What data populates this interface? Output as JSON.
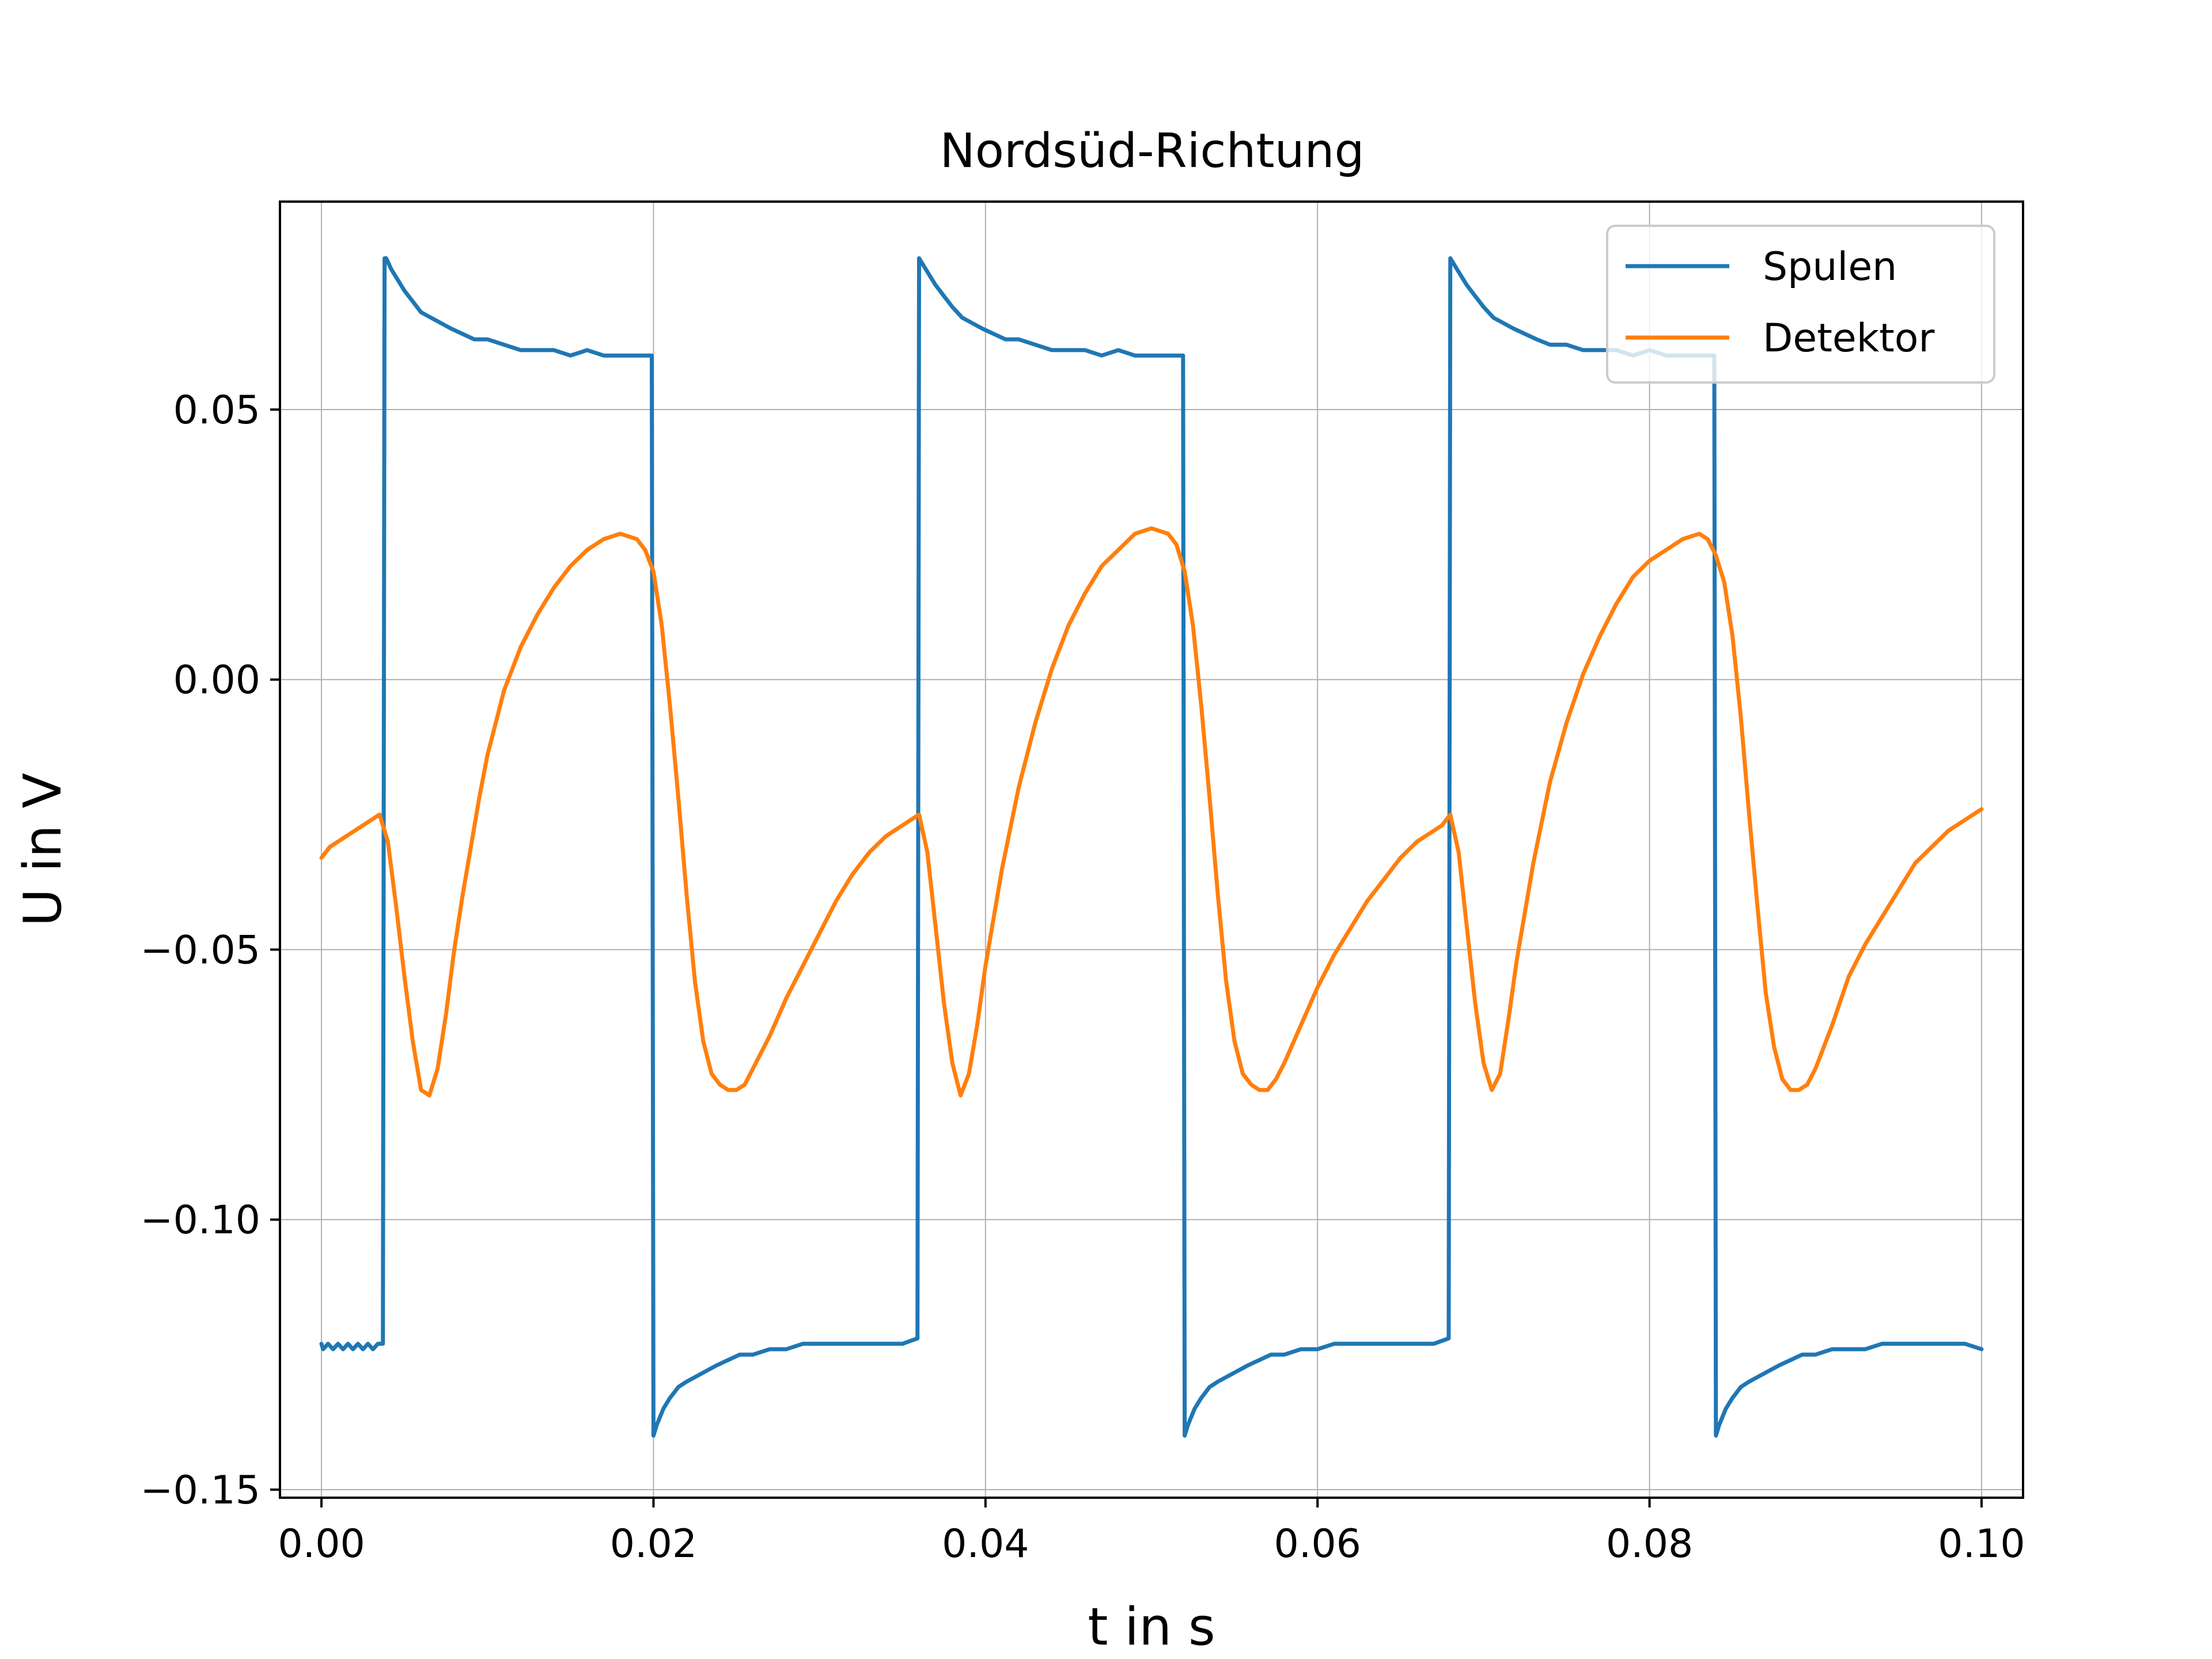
{
  "chart_data": {
    "type": "line",
    "title": "Nordsüd-Richtung",
    "xlabel": "t in s",
    "ylabel": "U in V",
    "xlim": [
      -0.0025,
      0.1025
    ],
    "ylim": [
      -0.1515,
      0.0885
    ],
    "xticks": [
      0.0,
      0.02,
      0.04,
      0.06,
      0.08,
      0.1
    ],
    "xtick_labels": [
      "0.00",
      "0.02",
      "0.04",
      "0.06",
      "0.08",
      "0.10"
    ],
    "yticks": [
      -0.15,
      -0.1,
      -0.05,
      0.0,
      0.05
    ],
    "ytick_labels": [
      "−0.15",
      "−0.10",
      "−0.05",
      "0.00",
      "0.05"
    ],
    "grid": true,
    "legend_position": "upper right",
    "series": [
      {
        "name": "Spulen",
        "color": "#1f77b4",
        "x": [
          0,
          0.0001,
          0.0004,
          0.0007,
          0.001,
          0.0013,
          0.0016,
          0.0019,
          0.0022,
          0.0025,
          0.0028,
          0.0031,
          0.0034,
          0.0037,
          0.0038,
          0.0039,
          0.0042,
          0.0046,
          0.005,
          0.0055,
          0.006,
          0.0066,
          0.0072,
          0.0078,
          0.0085,
          0.0092,
          0.01,
          0.011,
          0.012,
          0.013,
          0.014,
          0.015,
          0.016,
          0.017,
          0.018,
          0.019,
          0.0199,
          0.02,
          0.0202,
          0.0206,
          0.021,
          0.0215,
          0.022,
          0.0226,
          0.0232,
          0.0238,
          0.0245,
          0.0252,
          0.026,
          0.027,
          0.028,
          0.029,
          0.03,
          0.031,
          0.032,
          0.033,
          0.034,
          0.035,
          0.0359,
          0.036,
          0.0362,
          0.0366,
          0.037,
          0.0375,
          0.038,
          0.0386,
          0.0392,
          0.0398,
          0.0405,
          0.0412,
          0.042,
          0.043,
          0.044,
          0.045,
          0.046,
          0.047,
          0.048,
          0.049,
          0.05,
          0.051,
          0.0519,
          0.052,
          0.0522,
          0.0526,
          0.053,
          0.0535,
          0.054,
          0.0546,
          0.0552,
          0.0558,
          0.0565,
          0.0572,
          0.058,
          0.059,
          0.06,
          0.061,
          0.062,
          0.063,
          0.064,
          0.065,
          0.066,
          0.067,
          0.0679,
          0.068,
          0.0682,
          0.0686,
          0.069,
          0.0695,
          0.07,
          0.0706,
          0.0712,
          0.0718,
          0.0725,
          0.0732,
          0.074,
          0.075,
          0.076,
          0.077,
          0.078,
          0.079,
          0.08,
          0.081,
          0.082,
          0.083,
          0.0839,
          0.084,
          0.0842,
          0.0846,
          0.085,
          0.0855,
          0.086,
          0.0866,
          0.0872,
          0.0878,
          0.0885,
          0.0892,
          0.09,
          0.091,
          0.092,
          0.093,
          0.094,
          0.095,
          0.096,
          0.097,
          0.098,
          0.099,
          0.1
        ],
        "y": [
          -0.123,
          -0.124,
          -0.123,
          -0.124,
          -0.123,
          -0.124,
          -0.123,
          -0.124,
          -0.123,
          -0.124,
          -0.123,
          -0.124,
          -0.123,
          -0.123,
          0.078,
          0.078,
          0.076,
          0.074,
          0.072,
          0.07,
          0.068,
          0.067,
          0.066,
          0.065,
          0.064,
          0.063,
          0.063,
          0.062,
          0.061,
          0.061,
          0.061,
          0.06,
          0.061,
          0.06,
          0.06,
          0.06,
          0.06,
          -0.14,
          -0.138,
          -0.135,
          -0.133,
          -0.131,
          -0.13,
          -0.129,
          -0.128,
          -0.127,
          -0.126,
          -0.125,
          -0.125,
          -0.124,
          -0.124,
          -0.123,
          -0.123,
          -0.123,
          -0.123,
          -0.123,
          -0.123,
          -0.123,
          -0.122,
          0.078,
          0.077,
          0.075,
          0.073,
          0.071,
          0.069,
          0.067,
          0.066,
          0.065,
          0.064,
          0.063,
          0.063,
          0.062,
          0.061,
          0.061,
          0.061,
          0.06,
          0.061,
          0.06,
          0.06,
          0.06,
          0.06,
          -0.14,
          -0.138,
          -0.135,
          -0.133,
          -0.131,
          -0.13,
          -0.129,
          -0.128,
          -0.127,
          -0.126,
          -0.125,
          -0.125,
          -0.124,
          -0.124,
          -0.123,
          -0.123,
          -0.123,
          -0.123,
          -0.123,
          -0.123,
          -0.123,
          -0.122,
          0.078,
          0.077,
          0.075,
          0.073,
          0.071,
          0.069,
          0.067,
          0.066,
          0.065,
          0.064,
          0.063,
          0.062,
          0.062,
          0.061,
          0.061,
          0.061,
          0.06,
          0.061,
          0.06,
          0.06,
          0.06,
          0.06,
          -0.14,
          -0.138,
          -0.135,
          -0.133,
          -0.131,
          -0.13,
          -0.129,
          -0.128,
          -0.127,
          -0.126,
          -0.125,
          -0.125,
          -0.124,
          -0.124,
          -0.124,
          -0.123,
          -0.123,
          -0.123,
          -0.123,
          -0.123,
          -0.123,
          -0.124
        ]
      },
      {
        "name": "Detektor",
        "color": "#ff7f0e",
        "x": [
          0,
          0.0005,
          0.001,
          0.0015,
          0.002,
          0.0025,
          0.003,
          0.0035,
          0.004,
          0.0045,
          0.005,
          0.0055,
          0.006,
          0.0065,
          0.007,
          0.0075,
          0.008,
          0.0085,
          0.009,
          0.0095,
          0.01,
          0.011,
          0.012,
          0.013,
          0.014,
          0.015,
          0.016,
          0.017,
          0.018,
          0.019,
          0.0195,
          0.02,
          0.0205,
          0.021,
          0.0215,
          0.022,
          0.0225,
          0.023,
          0.0235,
          0.024,
          0.0245,
          0.025,
          0.0255,
          0.026,
          0.027,
          0.028,
          0.029,
          0.03,
          0.031,
          0.032,
          0.033,
          0.034,
          0.035,
          0.0355,
          0.036,
          0.0365,
          0.037,
          0.0375,
          0.038,
          0.0385,
          0.039,
          0.0395,
          0.04,
          0.041,
          0.042,
          0.043,
          0.044,
          0.045,
          0.046,
          0.047,
          0.048,
          0.049,
          0.05,
          0.051,
          0.0515,
          0.052,
          0.0525,
          0.053,
          0.0535,
          0.054,
          0.0545,
          0.055,
          0.0555,
          0.056,
          0.0565,
          0.057,
          0.0575,
          0.058,
          0.059,
          0.06,
          0.061,
          0.062,
          0.063,
          0.064,
          0.065,
          0.066,
          0.067,
          0.0675,
          0.068,
          0.0685,
          0.069,
          0.0695,
          0.07,
          0.0705,
          0.071,
          0.0715,
          0.072,
          0.073,
          0.074,
          0.075,
          0.076,
          0.077,
          0.078,
          0.079,
          0.08,
          0.081,
          0.082,
          0.083,
          0.0835,
          0.084,
          0.0845,
          0.085,
          0.0855,
          0.086,
          0.0865,
          0.087,
          0.0875,
          0.088,
          0.0885,
          0.089,
          0.0895,
          0.09,
          0.091,
          0.092,
          0.093,
          0.094,
          0.095,
          0.096,
          0.097,
          0.098,
          0.099,
          0.1
        ],
        "y": [
          -0.033,
          -0.031,
          -0.03,
          -0.029,
          -0.028,
          -0.027,
          -0.026,
          -0.025,
          -0.03,
          -0.042,
          -0.055,
          -0.067,
          -0.076,
          -0.077,
          -0.072,
          -0.062,
          -0.05,
          -0.04,
          -0.031,
          -0.022,
          -0.014,
          -0.002,
          0.006,
          0.012,
          0.017,
          0.021,
          0.024,
          0.026,
          0.027,
          0.026,
          0.024,
          0.02,
          0.01,
          -0.005,
          -0.022,
          -0.04,
          -0.056,
          -0.067,
          -0.073,
          -0.075,
          -0.076,
          -0.076,
          -0.075,
          -0.072,
          -0.066,
          -0.059,
          -0.053,
          -0.047,
          -0.041,
          -0.036,
          -0.032,
          -0.029,
          -0.027,
          -0.026,
          -0.025,
          -0.032,
          -0.046,
          -0.06,
          -0.071,
          -0.077,
          -0.073,
          -0.064,
          -0.053,
          -0.035,
          -0.02,
          -0.008,
          0.002,
          0.01,
          0.016,
          0.021,
          0.024,
          0.027,
          0.028,
          0.027,
          0.025,
          0.02,
          0.01,
          -0.005,
          -0.022,
          -0.04,
          -0.056,
          -0.067,
          -0.073,
          -0.075,
          -0.076,
          -0.076,
          -0.074,
          -0.071,
          -0.064,
          -0.057,
          -0.051,
          -0.046,
          -0.041,
          -0.037,
          -0.033,
          -0.03,
          -0.028,
          -0.027,
          -0.025,
          -0.032,
          -0.046,
          -0.06,
          -0.071,
          -0.076,
          -0.073,
          -0.063,
          -0.052,
          -0.034,
          -0.019,
          -0.008,
          0.001,
          0.008,
          0.014,
          0.019,
          0.022,
          0.024,
          0.026,
          0.027,
          0.026,
          0.023,
          0.018,
          0.008,
          -0.007,
          -0.025,
          -0.042,
          -0.058,
          -0.068,
          -0.074,
          -0.076,
          -0.076,
          -0.075,
          -0.072,
          -0.064,
          -0.055,
          -0.049,
          -0.044,
          -0.039,
          -0.034,
          -0.031,
          -0.028,
          -0.026,
          -0.024
        ]
      }
    ]
  }
}
